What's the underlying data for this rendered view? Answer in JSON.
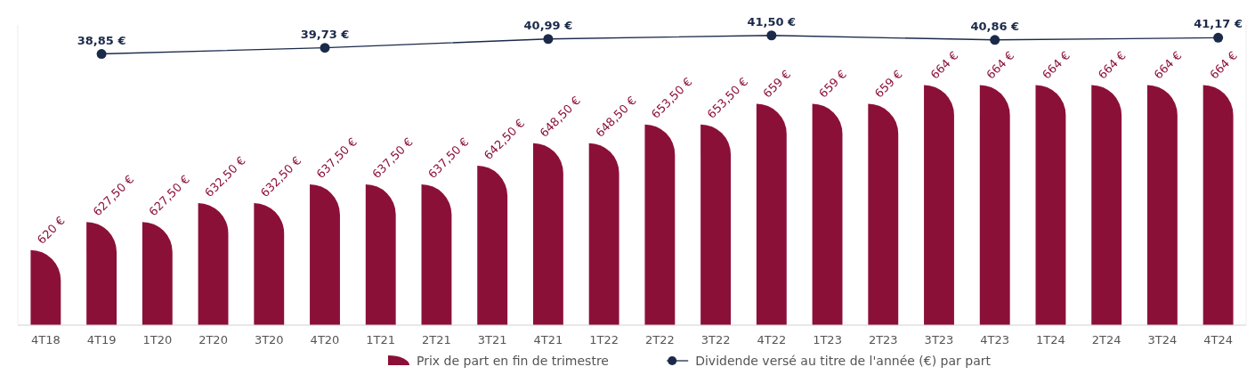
{
  "chart_data": {
    "type": "bar",
    "categories": [
      "4T18",
      "4T19",
      "1T20",
      "2T20",
      "3T20",
      "4T20",
      "1T21",
      "2T21",
      "3T21",
      "4T21",
      "1T22",
      "2T22",
      "3T22",
      "4T22",
      "1T23",
      "2T23",
      "3T23",
      "4T23",
      "1T24",
      "2T24",
      "3T24",
      "4T24"
    ],
    "ylim": [
      600,
      680
    ],
    "y2lim": [
      0,
      43
    ],
    "tick_labels": "x",
    "legend": "bottom",
    "marker": "circle",
    "series": [
      {
        "name": "Prix de part en fin de trimestre",
        "color": "#8b1038",
        "values": [
          620,
          627.5,
          627.5,
          632.5,
          632.5,
          637.5,
          637.5,
          637.5,
          642.5,
          648.5,
          648.5,
          653.5,
          653.5,
          659,
          659,
          659,
          664,
          664,
          664,
          664,
          664,
          664
        ],
        "value_labels": [
          "620 €",
          "627,50 €",
          "627,50 €",
          "632,50 €",
          "632,50 €",
          "637,50 €",
          "637,50 €",
          "637,50 €",
          "642,50 €",
          "648,50 €",
          "648,50 €",
          "653,50 €",
          "653,50 €",
          "659 €",
          "659 €",
          "659 €",
          "664 €",
          "664 €",
          "664 €",
          "664 €",
          "664 €",
          "664 €"
        ]
      },
      {
        "name": "Dividende versé au titre de l'année (€) par part",
        "type": "line",
        "axis": "y2",
        "color": "#1b2a4a",
        "values": [
          null,
          38.85,
          null,
          null,
          null,
          39.73,
          null,
          null,
          null,
          40.99,
          null,
          null,
          null,
          41.5,
          null,
          null,
          null,
          40.86,
          null,
          null,
          null,
          41.17
        ],
        "value_labels": [
          null,
          "38,85 €",
          null,
          null,
          null,
          "39,73 €",
          null,
          null,
          null,
          "40,99 €",
          null,
          null,
          null,
          "41,50 €",
          null,
          null,
          null,
          "40,86 €",
          null,
          null,
          null,
          "41,17 €"
        ]
      }
    ]
  }
}
